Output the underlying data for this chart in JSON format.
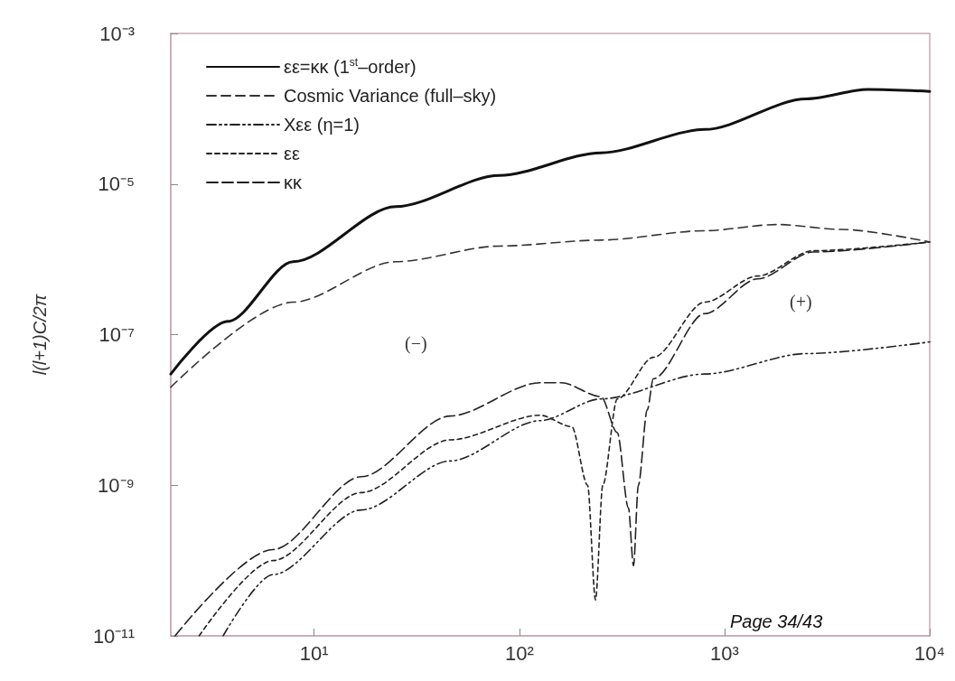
{
  "chart_data": {
    "type": "line",
    "ylabel": "l(l+1)C/2π",
    "log": "xy",
    "xlim": [
      2,
      10000
    ],
    "ylim": [
      1e-11,
      0.001
    ],
    "xticks": [
      {
        "value": 10,
        "label": "10¹"
      },
      {
        "value": 100,
        "label": "10²"
      },
      {
        "value": 1000,
        "label": "10³"
      },
      {
        "value": 10000,
        "label": "10⁴"
      }
    ],
    "yticks": [
      {
        "value": 1e-11,
        "label": "10⁻¹¹"
      },
      {
        "value": 1e-09,
        "label": "10⁻⁹"
      },
      {
        "value": 1e-07,
        "label": "10⁻⁷"
      },
      {
        "value": 1e-05,
        "label": "10⁻⁵"
      },
      {
        "value": 0.001,
        "label": "10⁻³"
      }
    ],
    "grid": false,
    "legend": "top left",
    "marker": "none",
    "series": [
      {
        "name": "εε=κκ (1$^{st}$–order)",
        "color": "#111111",
        "line_style": "solid",
        "x": [
          2,
          3.8,
          7.9,
          25,
          80,
          250,
          800,
          2500,
          5000,
          10000
        ],
        "values": [
          3e-08,
          1.5e-07,
          9.3e-07,
          5e-06,
          1.3e-05,
          2.6e-05,
          5.3e-05,
          0.000135,
          0.00018,
          0.00017
        ]
      },
      {
        "name": "Cosmic Variance (full–sky)",
        "color": "#333333",
        "line_style": "dashed",
        "x": [
          2,
          7.9,
          25,
          80,
          250,
          800,
          1800,
          3700,
          10000
        ],
        "values": [
          2e-08,
          2.7e-07,
          9.3e-07,
          1.5e-06,
          1.8e-06,
          2.4e-06,
          2.9e-06,
          2.5e-06,
          1.7e-06
        ]
      },
      {
        "name": "Xεε (η=1)",
        "color": "#222222",
        "line_style": "dashed",
        "x": [
          3.6,
          6.3,
          17,
          46,
          126,
          250,
          800,
          2500,
          10000
        ],
        "values": [
          1e-11,
          6.5e-11,
          4.7e-10,
          2.1e-09,
          7.2e-09,
          1.4e-08,
          3e-08,
          5.6e-08,
          8e-08
        ]
      },
      {
        "name": "εε",
        "color": "#222222",
        "line_style": "dashed",
        "x": [
          2.75,
          6.3,
          17,
          46,
          126,
          180,
          215,
          235,
          255,
          300,
          450,
          800,
          1450,
          2700,
          10000
        ],
        "values": [
          1e-11,
          1e-10,
          8e-10,
          4e-09,
          8.5e-09,
          6e-09,
          1e-09,
          3e-11,
          1e-09,
          1.4e-08,
          5e-08,
          2.7e-07,
          6e-07,
          1.3e-06,
          1.7e-06
        ]
      },
      {
        "name": "κκ",
        "color": "#222222",
        "line_style": "dashed",
        "x": [
          2.1,
          6.3,
          17,
          46,
          126,
          160,
          250,
          300,
          340,
          360,
          380,
          420,
          450,
          800,
          1450,
          2700,
          10000
        ],
        "values": [
          1e-11,
          1.4e-10,
          1.3e-09,
          8.3e-09,
          2.3e-08,
          2.3e-08,
          1.5e-08,
          5e-09,
          5e-10,
          8.5e-11,
          1e-09,
          1e-08,
          2.6e-08,
          1.9e-07,
          5.5e-07,
          1.25e-06,
          1.7e-06
        ]
      }
    ],
    "annotations": [
      "(−)",
      "(+)",
      "Page 34/43"
    ]
  }
}
